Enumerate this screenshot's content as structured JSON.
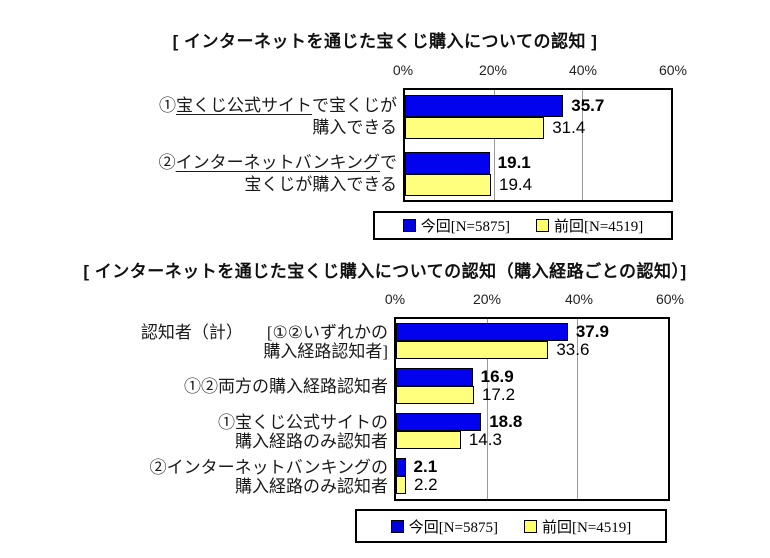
{
  "colors": {
    "series_current": "#0202ee",
    "series_previous": "#ffff7d",
    "gridline": "#9a9a9a",
    "frame": "#000000"
  },
  "legend": {
    "current": "今回[N=5875]",
    "previous": "前回[N=4519]"
  },
  "chart1": {
    "title": "[ インターネットを通じた宝くじ購入についての認知 ]",
    "ticks": [
      "0%",
      "20%",
      "40%",
      "60%"
    ],
    "rows": [
      {
        "line1_pre": "①",
        "line1_u": "宝くじ公式サイト",
        "line1_post": "で宝くじが",
        "line2": "購入できる"
      },
      {
        "line1_pre": "②",
        "line1_u": "インターネットバンキング",
        "line1_post": "で",
        "line2": "宝くじが購入できる"
      }
    ]
  },
  "chart2": {
    "title": "[ インターネットを通じた宝くじ購入についての認知（購入経路ごとの認知）]",
    "ticks": [
      "0%",
      "20%",
      "40%",
      "60%"
    ],
    "rows": [
      {
        "label_left": "認知者（計）",
        "line1": "[①②いずれかの",
        "line2": "購入経路認知者]"
      },
      {
        "line1": "①②両方の購入経路認知者"
      },
      {
        "line1": "①宝くじ公式サイトの",
        "line2": "購入経路のみ認知者"
      },
      {
        "line1": "②インターネットバンキングの",
        "line2": "購入経路のみ認知者"
      }
    ]
  },
  "chart_data": [
    {
      "type": "bar",
      "orientation": "horizontal",
      "title": "[ インターネットを通じた宝くじ購入についての認知 ]",
      "categories": [
        "①宝くじ公式サイトで宝くじが購入できる",
        "②インターネットバンキングで宝くじが購入できる"
      ],
      "series": [
        {
          "name": "今回[N=5875]",
          "values": [
            35.7,
            19.1
          ]
        },
        {
          "name": "前回[N=4519]",
          "values": [
            31.4,
            19.4
          ]
        }
      ],
      "unit": "%",
      "xlim": [
        0,
        60
      ],
      "tick_labels": [
        "0%",
        "20%",
        "40%",
        "60%"
      ],
      "gridlines_at": [
        20,
        40
      ],
      "legend_position": "bottom-right",
      "value_labels_shown": true
    },
    {
      "type": "bar",
      "orientation": "horizontal",
      "title": "[ インターネットを通じた宝くじ購入についての認知（購入経路ごとの認知）]",
      "categories": [
        "認知者（計）[①②いずれかの購入経路認知者]",
        "①②両方の購入経路認知者",
        "①宝くじ公式サイトの購入経路のみ認知者",
        "②インターネットバンキングの購入経路のみ認知者"
      ],
      "series": [
        {
          "name": "今回[N=5875]",
          "values": [
            37.9,
            16.9,
            18.8,
            2.1
          ]
        },
        {
          "name": "前回[N=4519]",
          "values": [
            33.6,
            17.2,
            14.3,
            2.2
          ]
        }
      ],
      "unit": "%",
      "xlim": [
        0,
        60
      ],
      "tick_labels": [
        "0%",
        "20%",
        "40%",
        "60%"
      ],
      "gridlines_at": [
        20,
        40
      ],
      "legend_position": "bottom-right",
      "value_labels_shown": true
    }
  ]
}
